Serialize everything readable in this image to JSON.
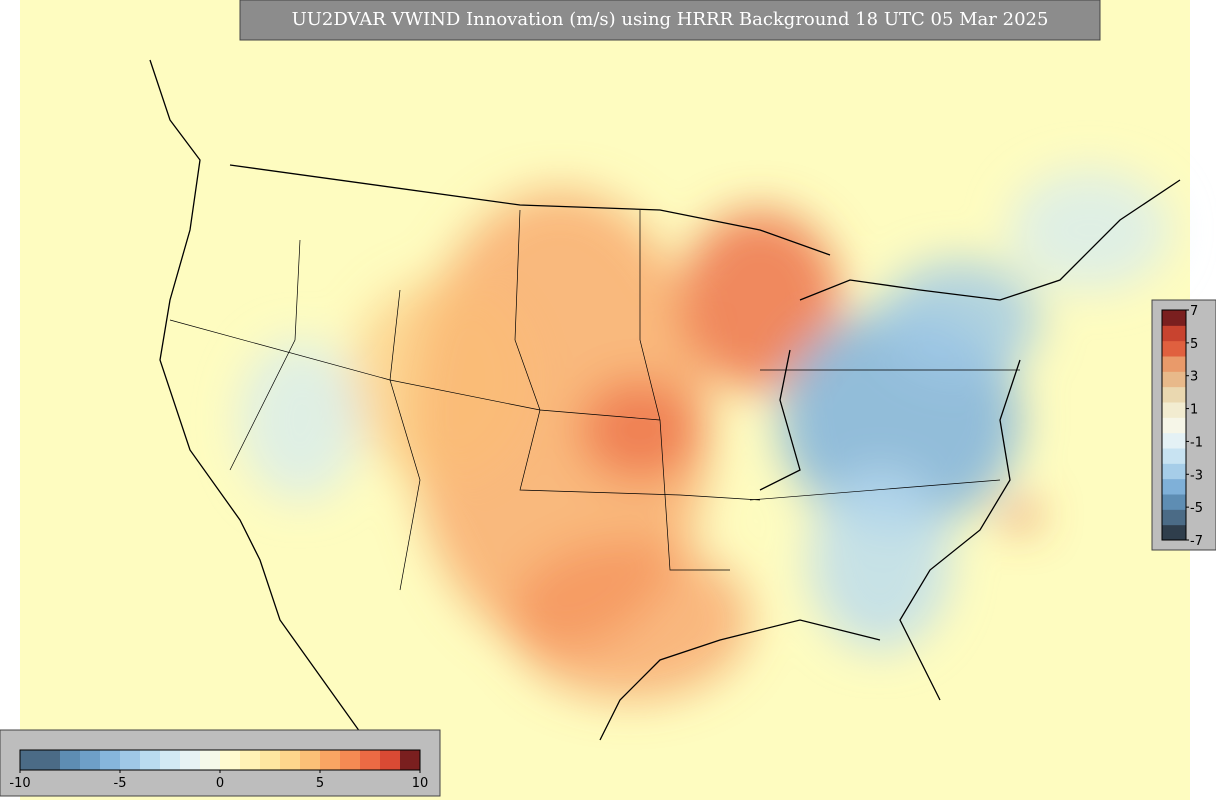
{
  "title": "UU2DVAR VWIND Innovation (m/s) using HRRR Background 18 UTC 05 Mar 2025",
  "colorbars": [
    {
      "orientation": "horizontal",
      "range": [
        -10,
        10
      ],
      "ticks": [
        -10,
        -5,
        0,
        5,
        10
      ],
      "colors": [
        "#4b6b86",
        "#4b6b86",
        "#5e8db3",
        "#6e9fc8",
        "#86b6dc",
        "#9fc8e6",
        "#b9dbef",
        "#d2e9f4",
        "#e6f3f4",
        "#f5f9ea",
        "#fffbd0",
        "#fff3b6",
        "#fee6a0",
        "#fdd68c",
        "#fcc077",
        "#faa563",
        "#f58a53",
        "#ec6a44",
        "#d94a34",
        "#7a1f1f"
      ]
    },
    {
      "orientation": "vertical",
      "range": [
        -7,
        7
      ],
      "ticks": [
        7,
        5,
        3,
        1,
        -1,
        -3,
        -5,
        -7
      ],
      "colors": [
        "#2f3e4c",
        "#4b6b86",
        "#5e8db3",
        "#7fb0d8",
        "#a6cde8",
        "#c8e3f2",
        "#e4f1f5",
        "#f6f6e8",
        "#f2ecd0",
        "#ead8b0",
        "#e8b98a",
        "#e99a6a",
        "#e0603f",
        "#c8432f",
        "#7a1f1f"
      ]
    }
  ]
}
